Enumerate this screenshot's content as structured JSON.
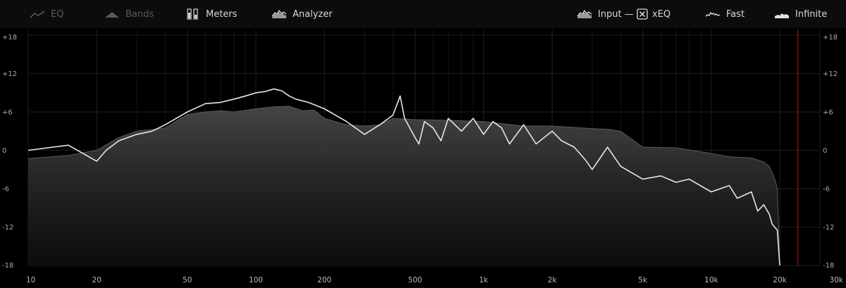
{
  "toolbar": {
    "eq_label": "EQ",
    "bands_label": "Bands",
    "meters_label": "Meters",
    "analyzer_label": "Analyzer",
    "input_label": "Input —",
    "xeq_label": "xEQ",
    "fast_label": "Fast",
    "infinite_label": "Infinite"
  },
  "colors": {
    "background": "#000000",
    "toolbar": "#0c0c0c",
    "grid": "#1e1e1e",
    "fill": "#3a3a3a",
    "curve": "#e6e6e6",
    "marker": "#7a1010"
  },
  "chart_data": {
    "type": "area",
    "x_scale": "log",
    "xlim": [
      10,
      30000
    ],
    "ylim": [
      -18,
      18
    ],
    "x_ticks": [
      10,
      20,
      50,
      100,
      200,
      500,
      1000,
      2000,
      5000,
      10000,
      20000,
      30000
    ],
    "x_tick_labels": [
      "10",
      "20",
      "50",
      "100",
      "200",
      "500",
      "1k",
      "2k",
      "5k",
      "10k",
      "20k",
      "30k"
    ],
    "y_ticks": [
      18,
      12,
      6,
      0,
      -6,
      -12,
      -18
    ],
    "y_tick_labels": [
      "+18",
      "+12",
      "+6",
      "0",
      "-6",
      "-12",
      "-18"
    ],
    "marker_frequency_hz": 24000,
    "series": [
      {
        "style": "filled",
        "x": [
          10,
          15,
          20,
          25,
          30,
          40,
          50,
          60,
          70,
          80,
          100,
          120,
          140,
          160,
          180,
          200,
          250,
          300,
          350,
          400,
          500,
          700,
          1000,
          1500,
          2000,
          3000,
          3500,
          4000,
          5000,
          7000,
          10000,
          12000,
          15000,
          17000,
          18000,
          19000,
          19500,
          20000
        ],
        "y": [
          -1.3,
          -0.8,
          0.0,
          2.0,
          3.0,
          3.5,
          5.6,
          6.0,
          6.2,
          6.0,
          6.5,
          6.8,
          6.9,
          6.2,
          6.3,
          5.0,
          4.0,
          3.8,
          4.0,
          5.0,
          4.8,
          4.7,
          4.5,
          3.8,
          3.8,
          3.4,
          3.3,
          3.0,
          0.5,
          0.4,
          -0.5,
          -1.0,
          -1.2,
          -1.8,
          -2.5,
          -4.5,
          -6.0,
          -18.0
        ]
      },
      {
        "style": "line",
        "x": [
          10,
          15,
          20,
          22,
          25,
          30,
          35,
          40,
          50,
          60,
          70,
          80,
          90,
          100,
          110,
          120,
          130,
          140,
          150,
          170,
          200,
          250,
          300,
          350,
          400,
          430,
          450,
          500,
          520,
          550,
          600,
          650,
          700,
          800,
          900,
          1000,
          1100,
          1200,
          1300,
          1500,
          1700,
          2000,
          2200,
          2500,
          2800,
          3000,
          3500,
          4000,
          5000,
          6000,
          7000,
          8000,
          10000,
          12000,
          13000,
          15000,
          16000,
          17000,
          18000,
          18500,
          19000,
          19500,
          20000
        ],
        "y": [
          0.0,
          0.8,
          -1.7,
          0.0,
          1.5,
          2.5,
          3.0,
          4.0,
          6.0,
          7.3,
          7.5,
          8.0,
          8.5,
          9.0,
          9.2,
          9.6,
          9.3,
          8.5,
          8.0,
          7.5,
          6.5,
          4.5,
          2.5,
          4.0,
          5.5,
          8.5,
          5.0,
          2.0,
          1.0,
          4.5,
          3.5,
          1.5,
          5.0,
          3.0,
          5.0,
          2.5,
          4.5,
          3.5,
          1.0,
          4.0,
          1.0,
          3.0,
          1.5,
          0.5,
          -1.5,
          -3.0,
          0.5,
          -2.5,
          -4.5,
          -4.0,
          -5.0,
          -4.5,
          -6.5,
          -5.5,
          -7.5,
          -6.5,
          -9.5,
          -8.5,
          -10.0,
          -11.5,
          -12.0,
          -12.5,
          -18.0
        ]
      }
    ]
  }
}
